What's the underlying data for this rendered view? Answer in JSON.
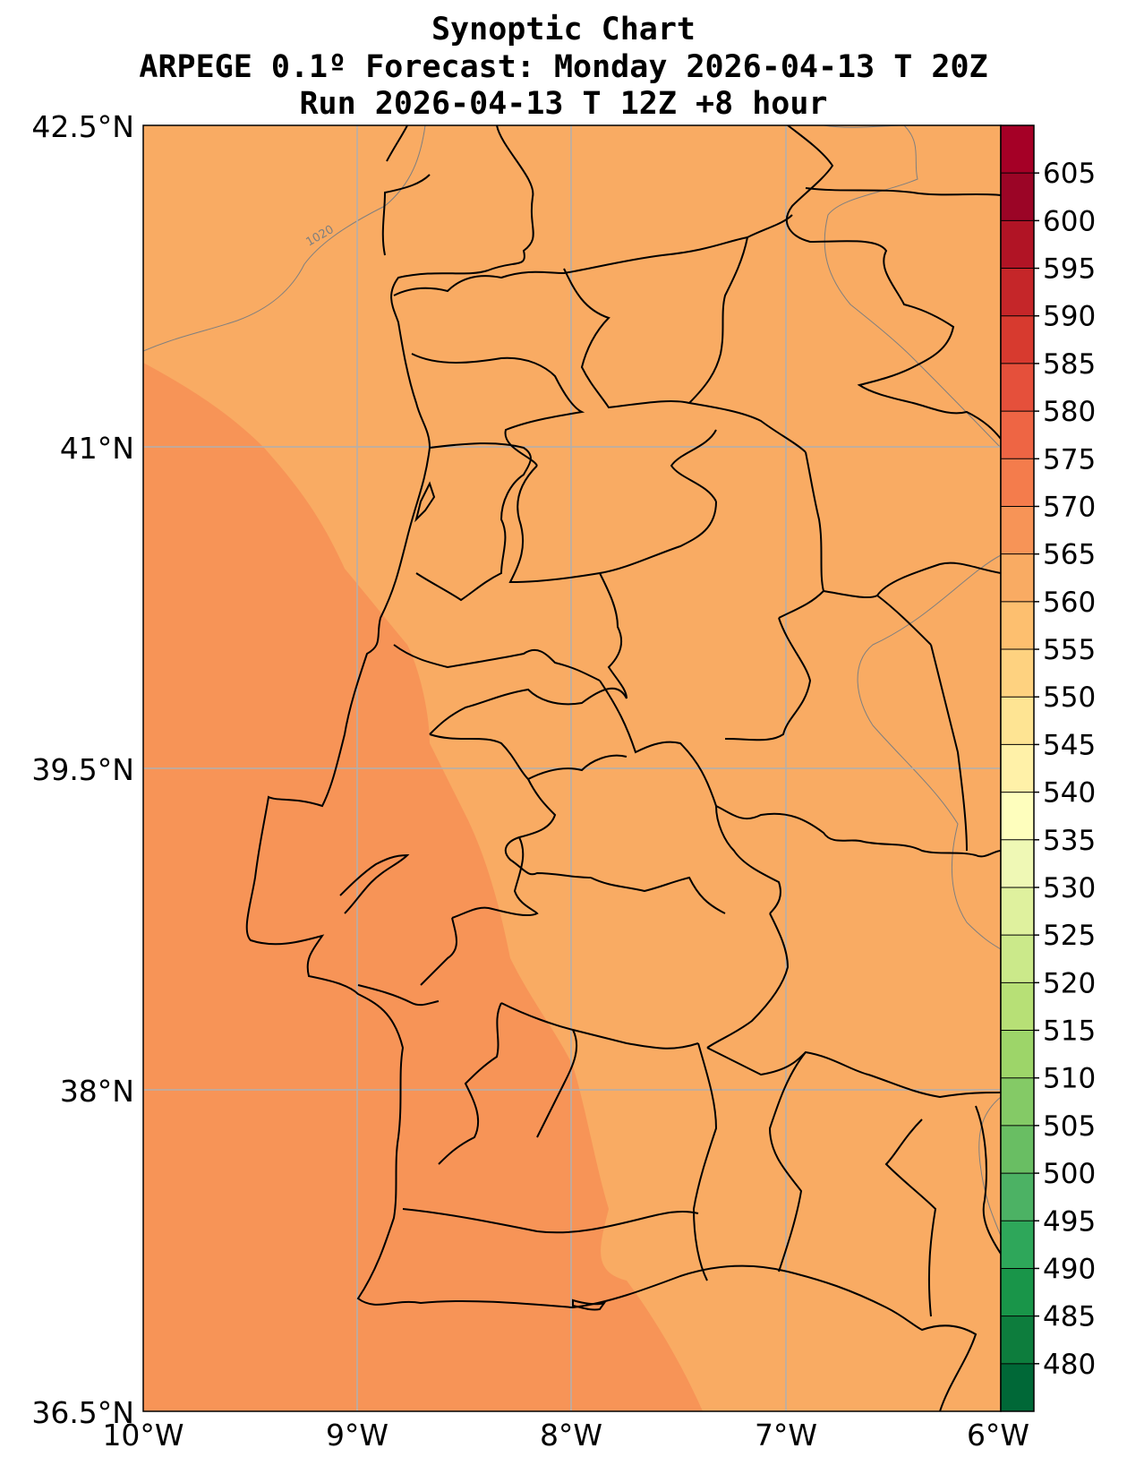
{
  "title": {
    "line1": "Synoptic Chart",
    "line2": "ARPEGE 0.1º Forecast: Monday 2026-04-13 T 20Z",
    "line3": "Run 2026-04-13 T 12Z +8 hour"
  },
  "map": {
    "lat_labels": [
      "42.5°N",
      "41°N",
      "39.5°N",
      "38°N",
      "36.5°N"
    ],
    "lon_labels": [
      "10°W",
      "9°W",
      "8°W",
      "7°W",
      "6°W"
    ],
    "extent": {
      "lon_min": -10,
      "lon_max": -6,
      "lat_min": 36.5,
      "lat_max": 42.5
    },
    "isobar_label": "1020",
    "field_colors": {
      "band_565_570": "#f9ab63",
      "band_570_575": "#f79457"
    }
  },
  "colorbar": {
    "labels": [
      "480",
      "485",
      "490",
      "495",
      "500",
      "505",
      "510",
      "515",
      "520",
      "525",
      "530",
      "535",
      "540",
      "545",
      "550",
      "555",
      "560",
      "565",
      "570",
      "575",
      "580",
      "585",
      "590",
      "595",
      "600",
      "605"
    ],
    "colors": [
      "#006837",
      "#0d7d3d",
      "#199549",
      "#2ea75a",
      "#4cb264",
      "#69be63",
      "#84ca66",
      "#9dd569",
      "#b7e076",
      "#cbe98a",
      "#dff19e",
      "#eff8b5",
      "#fefebd",
      "#fff1a8",
      "#fee493",
      "#fed280",
      "#fdbf6f",
      "#f9ab63",
      "#f79457",
      "#f47c4c",
      "#ee6544",
      "#e5503b",
      "#d73a2f",
      "#c52629",
      "#b11425",
      "#9b0526",
      "#a50026"
    ]
  }
}
